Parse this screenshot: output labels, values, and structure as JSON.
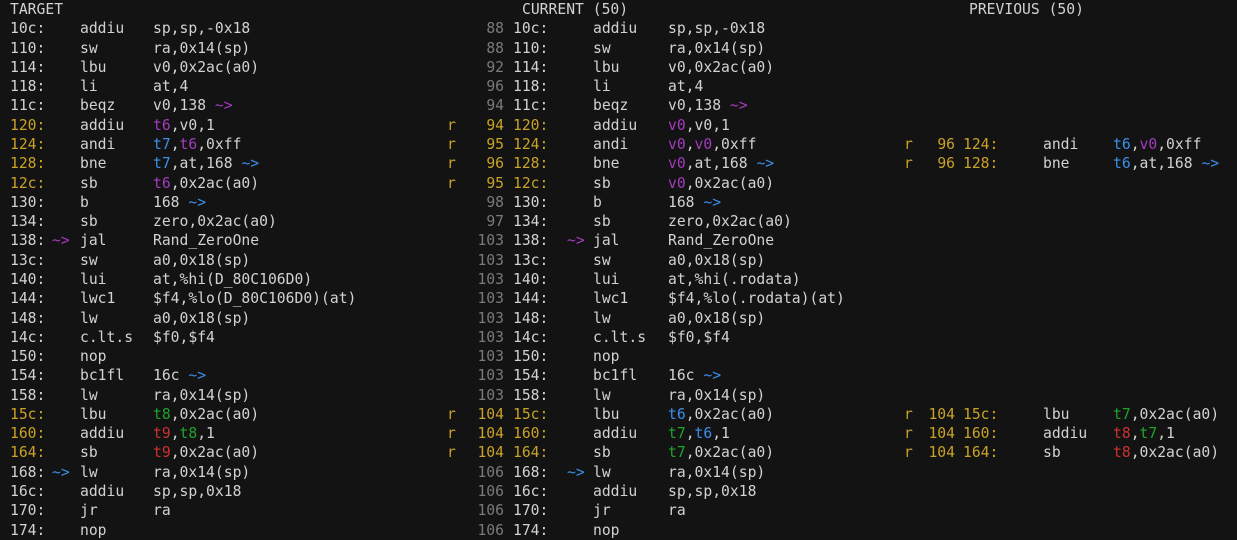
{
  "palette": {
    "bg": "#131313",
    "p": "#d2d2d2",
    "y": "#c9a227",
    "gr": "#7a7a7a",
    "m": "#a43bbf",
    "b": "#3b8eea",
    "g": "#1da32a",
    "r": "#cd3131"
  },
  "columns": [
    {
      "id": "target",
      "header": "TARGET",
      "rows": [
        {
          "addr": "10c:",
          "mn": "addiu",
          "ops": [
            [
              "p",
              "sp,sp,-0x18"
            ]
          ]
        },
        {
          "addr": "110:",
          "mn": "sw",
          "ops": [
            [
              "p",
              "ra,0x14(sp)"
            ]
          ]
        },
        {
          "addr": "114:",
          "mn": "lbu",
          "ops": [
            [
              "p",
              "v0,0x2ac(a0)"
            ]
          ]
        },
        {
          "addr": "118:",
          "mn": "li",
          "ops": [
            [
              "p",
              "at,4"
            ]
          ]
        },
        {
          "addr": "11c:",
          "mn": "beqz",
          "ops": [
            [
              "p",
              "v0,138 "
            ],
            [
              "m",
              "~>"
            ]
          ]
        },
        {
          "addr": "120:",
          "chg": true,
          "mn": "addiu",
          "ops": [
            [
              "m",
              "t6"
            ],
            [
              "p",
              ",v0,1"
            ]
          ]
        },
        {
          "addr": "124:",
          "chg": true,
          "mn": "andi",
          "ops": [
            [
              "b",
              "t7"
            ],
            [
              "p",
              ","
            ],
            [
              "m",
              "t6"
            ],
            [
              "p",
              ",0xff"
            ]
          ]
        },
        {
          "addr": "128:",
          "chg": true,
          "mn": "bne",
          "ops": [
            [
              "b",
              "t7"
            ],
            [
              "p",
              ",at,168 "
            ],
            [
              "b",
              "~>"
            ]
          ]
        },
        {
          "addr": "12c:",
          "chg": true,
          "mn": "sb",
          "ops": [
            [
              "m",
              "t6"
            ],
            [
              "p",
              ",0x2ac(a0)"
            ]
          ]
        },
        {
          "addr": "130:",
          "mn": "b",
          "ops": [
            [
              "p",
              "168 "
            ],
            [
              "b",
              "~>"
            ]
          ]
        },
        {
          "addr": "134:",
          "mn": "sb",
          "ops": [
            [
              "p",
              "zero,0x2ac(a0)"
            ]
          ]
        },
        {
          "addr": "138:",
          "bin": [
            "m",
            "~>"
          ],
          "mn": "jal",
          "ops": [
            [
              "p",
              "Rand_ZeroOne"
            ]
          ]
        },
        {
          "addr": "13c:",
          "mn": "sw",
          "ops": [
            [
              "p",
              "a0,0x18(sp)"
            ]
          ]
        },
        {
          "addr": "140:",
          "mn": "lui",
          "ops": [
            [
              "p",
              "at,%hi(D_80C106D0)"
            ]
          ]
        },
        {
          "addr": "144:",
          "mn": "lwc1",
          "ops": [
            [
              "p",
              "$f4,%lo(D_80C106D0)(at)"
            ]
          ]
        },
        {
          "addr": "148:",
          "mn": "lw",
          "ops": [
            [
              "p",
              "a0,0x18(sp)"
            ]
          ]
        },
        {
          "addr": "14c:",
          "mn": "c.lt.s",
          "ops": [
            [
              "p",
              "$f0,$f4"
            ]
          ]
        },
        {
          "addr": "150:",
          "mn": "nop",
          "ops": []
        },
        {
          "addr": "154:",
          "mn": "bc1fl",
          "ops": [
            [
              "p",
              "16c "
            ],
            [
              "b",
              "~>"
            ]
          ]
        },
        {
          "addr": "158:",
          "mn": "lw",
          "ops": [
            [
              "p",
              "ra,0x14(sp)"
            ]
          ]
        },
        {
          "addr": "15c:",
          "chg": true,
          "mn": "lbu",
          "ops": [
            [
              "g",
              "t8"
            ],
            [
              "p",
              ",0x2ac(a0)"
            ]
          ]
        },
        {
          "addr": "160:",
          "chg": true,
          "mn": "addiu",
          "ops": [
            [
              "r",
              "t9"
            ],
            [
              "p",
              ","
            ],
            [
              "g",
              "t8"
            ],
            [
              "p",
              ",1"
            ]
          ]
        },
        {
          "addr": "164:",
          "chg": true,
          "mn": "sb",
          "ops": [
            [
              "r",
              "t9"
            ],
            [
              "p",
              ",0x2ac(a0)"
            ]
          ]
        },
        {
          "addr": "168:",
          "bin": [
            "b",
            "~>"
          ],
          "mn": "lw",
          "ops": [
            [
              "p",
              "ra,0x14(sp)"
            ]
          ]
        },
        {
          "addr": "16c:",
          "mn": "addiu",
          "ops": [
            [
              "p",
              "sp,sp,0x18"
            ]
          ]
        },
        {
          "addr": "170:",
          "mn": "jr",
          "ops": [
            [
              "p",
              "ra"
            ]
          ]
        },
        {
          "addr": "174:",
          "mn": "nop",
          "ops": []
        }
      ]
    },
    {
      "id": "current",
      "header": "CURRENT (50)",
      "rows": [
        {
          "ln": "88",
          "addr": "10c:",
          "mn": "addiu",
          "ops": [
            [
              "p",
              "sp,sp,-0x18"
            ]
          ]
        },
        {
          "ln": "88",
          "addr": "110:",
          "mn": "sw",
          "ops": [
            [
              "p",
              "ra,0x14(sp)"
            ]
          ]
        },
        {
          "ln": "92",
          "addr": "114:",
          "mn": "lbu",
          "ops": [
            [
              "p",
              "v0,0x2ac(a0)"
            ]
          ]
        },
        {
          "ln": "96",
          "addr": "118:",
          "mn": "li",
          "ops": [
            [
              "p",
              "at,4"
            ]
          ]
        },
        {
          "ln": "94",
          "addr": "11c:",
          "mn": "beqz",
          "ops": [
            [
              "p",
              "v0,138 "
            ],
            [
              "m",
              "~>"
            ]
          ]
        },
        {
          "flag": "r",
          "ln": "94",
          "addr": "120:",
          "chg": true,
          "mn": "addiu",
          "ops": [
            [
              "m",
              "v0"
            ],
            [
              "p",
              ",v0,1"
            ]
          ]
        },
        {
          "flag": "r",
          "ln": "95",
          "addr": "124:",
          "chg": true,
          "mn": "andi",
          "ops": [
            [
              "m",
              "v0"
            ],
            [
              "p",
              ","
            ],
            [
              "m",
              "v0"
            ],
            [
              "p",
              ",0xff"
            ]
          ]
        },
        {
          "flag": "r",
          "ln": "96",
          "addr": "128:",
          "chg": true,
          "mn": "bne",
          "ops": [
            [
              "m",
              "v0"
            ],
            [
              "p",
              ",at,168 "
            ],
            [
              "b",
              "~>"
            ]
          ]
        },
        {
          "flag": "r",
          "ln": "95",
          "addr": "12c:",
          "chg": true,
          "mn": "sb",
          "ops": [
            [
              "m",
              "v0"
            ],
            [
              "p",
              ",0x2ac(a0)"
            ]
          ]
        },
        {
          "ln": "98",
          "addr": "130:",
          "mn": "b",
          "ops": [
            [
              "p",
              "168 "
            ],
            [
              "b",
              "~>"
            ]
          ]
        },
        {
          "ln": "97",
          "addr": "134:",
          "mn": "sb",
          "ops": [
            [
              "p",
              "zero,0x2ac(a0)"
            ]
          ]
        },
        {
          "ln": "103",
          "addr": "138:",
          "bin": [
            "m",
            "~>"
          ],
          "mn": "jal",
          "ops": [
            [
              "p",
              "Rand_ZeroOne"
            ]
          ]
        },
        {
          "ln": "103",
          "addr": "13c:",
          "mn": "sw",
          "ops": [
            [
              "p",
              "a0,0x18(sp)"
            ]
          ]
        },
        {
          "ln": "103",
          "addr": "140:",
          "mn": "lui",
          "ops": [
            [
              "p",
              "at,%hi(.rodata)"
            ]
          ]
        },
        {
          "ln": "103",
          "addr": "144:",
          "mn": "lwc1",
          "ops": [
            [
              "p",
              "$f4,%lo(.rodata)(at)"
            ]
          ]
        },
        {
          "ln": "103",
          "addr": "148:",
          "mn": "lw",
          "ops": [
            [
              "p",
              "a0,0x18(sp)"
            ]
          ]
        },
        {
          "ln": "103",
          "addr": "14c:",
          "mn": "c.lt.s",
          "ops": [
            [
              "p",
              "$f0,$f4"
            ]
          ]
        },
        {
          "ln": "103",
          "addr": "150:",
          "mn": "nop",
          "ops": []
        },
        {
          "ln": "103",
          "addr": "154:",
          "mn": "bc1fl",
          "ops": [
            [
              "p",
              "16c "
            ],
            [
              "b",
              "~>"
            ]
          ]
        },
        {
          "ln": "103",
          "addr": "158:",
          "mn": "lw",
          "ops": [
            [
              "p",
              "ra,0x14(sp)"
            ]
          ]
        },
        {
          "flag": "r",
          "ln": "104",
          "addr": "15c:",
          "chg": true,
          "mn": "lbu",
          "ops": [
            [
              "b",
              "t6"
            ],
            [
              "p",
              ",0x2ac(a0)"
            ]
          ]
        },
        {
          "flag": "r",
          "ln": "104",
          "addr": "160:",
          "chg": true,
          "mn": "addiu",
          "ops": [
            [
              "g",
              "t7"
            ],
            [
              "p",
              ","
            ],
            [
              "b",
              "t6"
            ],
            [
              "p",
              ",1"
            ]
          ]
        },
        {
          "flag": "r",
          "ln": "104",
          "addr": "164:",
          "chg": true,
          "mn": "sb",
          "ops": [
            [
              "g",
              "t7"
            ],
            [
              "p",
              ",0x2ac(a0)"
            ]
          ]
        },
        {
          "ln": "106",
          "addr": "168:",
          "bin": [
            "b",
            "~>"
          ],
          "mn": "lw",
          "ops": [
            [
              "p",
              "ra,0x14(sp)"
            ]
          ]
        },
        {
          "ln": "106",
          "addr": "16c:",
          "mn": "addiu",
          "ops": [
            [
              "p",
              "sp,sp,0x18"
            ]
          ]
        },
        {
          "ln": "106",
          "addr": "170:",
          "mn": "jr",
          "ops": [
            [
              "p",
              "ra"
            ]
          ]
        },
        {
          "ln": "106",
          "addr": "174:",
          "mn": "nop",
          "ops": []
        }
      ]
    },
    {
      "id": "previous",
      "header": "PREVIOUS (50)",
      "rows": [
        null,
        null,
        null,
        null,
        null,
        null,
        {
          "flag": "r",
          "ln": "96",
          "addr": "124:",
          "chg": true,
          "mn": "andi",
          "ops": [
            [
              "b",
              "t6"
            ],
            [
              "p",
              ","
            ],
            [
              "m",
              "v0"
            ],
            [
              "p",
              ",0xff"
            ]
          ]
        },
        {
          "flag": "r",
          "ln": "96",
          "addr": "128:",
          "chg": true,
          "mn": "bne",
          "ops": [
            [
              "b",
              "t6"
            ],
            [
              "p",
              ",at,168 "
            ],
            [
              "b",
              "~>"
            ]
          ]
        },
        null,
        null,
        null,
        null,
        null,
        null,
        null,
        null,
        null,
        null,
        null,
        null,
        {
          "flag": "r",
          "ln": "104",
          "addr": "15c:",
          "chg": true,
          "mn": "lbu",
          "ops": [
            [
              "g",
              "t7"
            ],
            [
              "p",
              ",0x2ac(a0)"
            ]
          ]
        },
        {
          "flag": "r",
          "ln": "104",
          "addr": "160:",
          "chg": true,
          "mn": "addiu",
          "ops": [
            [
              "r",
              "t8"
            ],
            [
              "p",
              ","
            ],
            [
              "g",
              "t7"
            ],
            [
              "p",
              ",1"
            ]
          ]
        },
        {
          "flag": "r",
          "ln": "104",
          "addr": "164:",
          "chg": true,
          "mn": "sb",
          "ops": [
            [
              "r",
              "t8"
            ],
            [
              "p",
              ",0x2ac(a0)"
            ]
          ]
        },
        null,
        null,
        null,
        null
      ]
    }
  ]
}
